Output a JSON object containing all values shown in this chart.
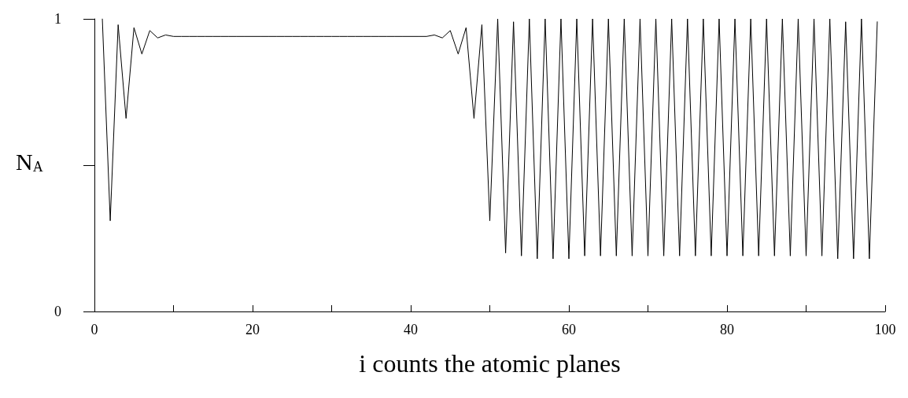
{
  "chart_data": {
    "type": "line",
    "xlabel": "i counts the atomic planes",
    "ylabel": "N$_{A}$",
    "x": [
      1,
      2,
      3,
      4,
      5,
      6,
      7,
      8,
      9,
      10,
      11,
      12,
      13,
      14,
      15,
      16,
      17,
      18,
      19,
      20,
      21,
      22,
      23,
      24,
      25,
      26,
      27,
      28,
      29,
      30,
      31,
      32,
      33,
      34,
      35,
      36,
      37,
      38,
      39,
      40,
      41,
      42,
      43,
      44,
      45,
      46,
      47,
      48,
      49,
      50,
      51,
      52,
      53,
      54,
      55,
      56,
      57,
      58,
      59,
      60,
      61,
      62,
      63,
      64,
      65,
      66,
      67,
      68,
      69,
      70,
      71,
      72,
      73,
      74,
      75,
      76,
      77,
      78,
      79,
      80,
      81,
      82,
      83,
      84,
      85,
      86,
      87,
      88,
      89,
      90,
      91,
      92,
      93,
      94,
      95,
      96,
      97,
      98,
      99
    ],
    "series": [
      {
        "color": "#000000",
        "values": [
          1.0,
          0.31,
          0.98,
          0.66,
          0.97,
          0.88,
          0.96,
          0.935,
          0.945,
          0.94,
          0.94,
          0.94,
          0.94,
          0.94,
          0.94,
          0.94,
          0.94,
          0.94,
          0.94,
          0.94,
          0.94,
          0.94,
          0.94,
          0.94,
          0.94,
          0.94,
          0.94,
          0.94,
          0.94,
          0.94,
          0.94,
          0.94,
          0.94,
          0.94,
          0.94,
          0.94,
          0.94,
          0.94,
          0.94,
          0.94,
          0.94,
          0.94,
          0.945,
          0.935,
          0.96,
          0.88,
          0.97,
          0.66,
          0.98,
          0.31,
          1.0,
          0.2,
          0.99,
          0.19,
          1.0,
          0.18,
          1.0,
          0.18,
          1.0,
          0.18,
          1.0,
          0.19,
          1.0,
          0.19,
          1.0,
          0.19,
          1.0,
          0.19,
          1.0,
          0.19,
          1.0,
          0.19,
          1.0,
          0.19,
          1.0,
          0.19,
          1.0,
          0.19,
          1.0,
          0.19,
          1.0,
          0.19,
          1.0,
          0.19,
          1.0,
          0.19,
          1.0,
          0.19,
          1.0,
          0.19,
          1.0,
          0.19,
          1.0,
          0.18,
          0.99,
          0.18,
          1.0,
          0.18,
          0.99
        ]
      }
    ],
    "xlim": [
      0,
      100
    ],
    "xticks": [
      0,
      {
        "value": 10,
        "label": null
      },
      20,
      {
        "value": 30,
        "label": null
      },
      40,
      {
        "value": 50,
        "label": null
      },
      60,
      {
        "value": 70,
        "label": null
      },
      80,
      {
        "value": 90,
        "label": null
      },
      100
    ],
    "ylim": [
      0,
      1
    ],
    "yticks": [
      0,
      {
        "value": 0.5,
        "label": null
      },
      1
    ],
    "grid": false,
    "marker": "none",
    "line_style": "solid"
  }
}
